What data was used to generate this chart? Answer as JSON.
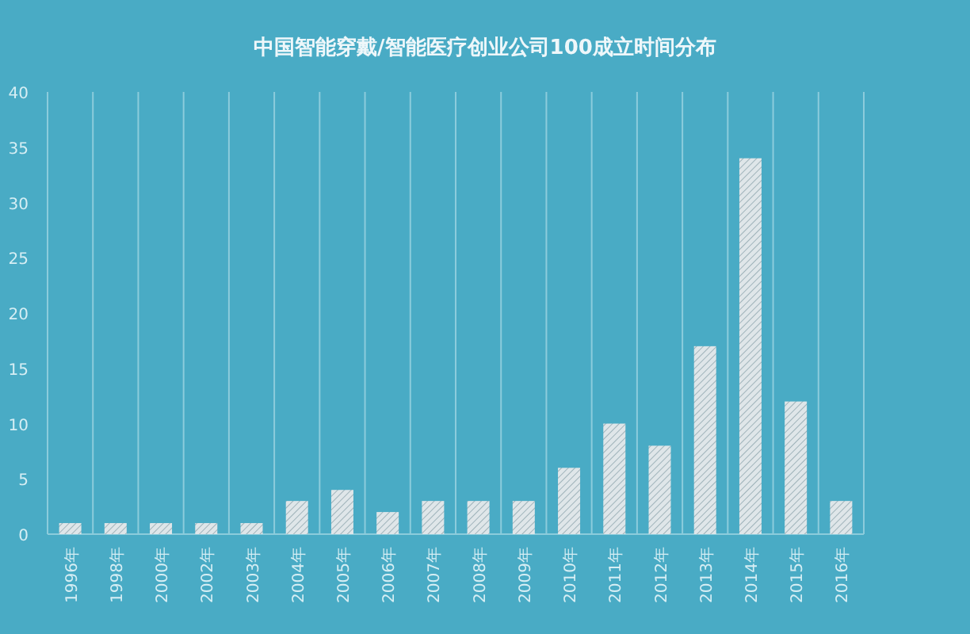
{
  "chart_data": {
    "type": "bar",
    "title": "中国智能穿戴/智能医疗创业公司100成立时间分布",
    "categories": [
      "1996年",
      "1998年",
      "2000年",
      "2002年",
      "2003年",
      "2004年",
      "2005年",
      "2006年",
      "2007年",
      "2008年",
      "2009年",
      "2010年",
      "2011年",
      "2012年",
      "2013年",
      "2014年",
      "2015年",
      "2016年"
    ],
    "values": [
      1,
      1,
      1,
      1,
      1,
      3,
      4,
      2,
      3,
      3,
      3,
      6,
      10,
      8,
      17,
      34,
      12,
      3
    ],
    "color": "#dfe6e9",
    "ylim": [
      0,
      40
    ],
    "yticks": [
      0,
      5,
      10,
      15,
      20,
      25,
      30,
      35,
      40
    ],
    "grid": "x"
  }
}
